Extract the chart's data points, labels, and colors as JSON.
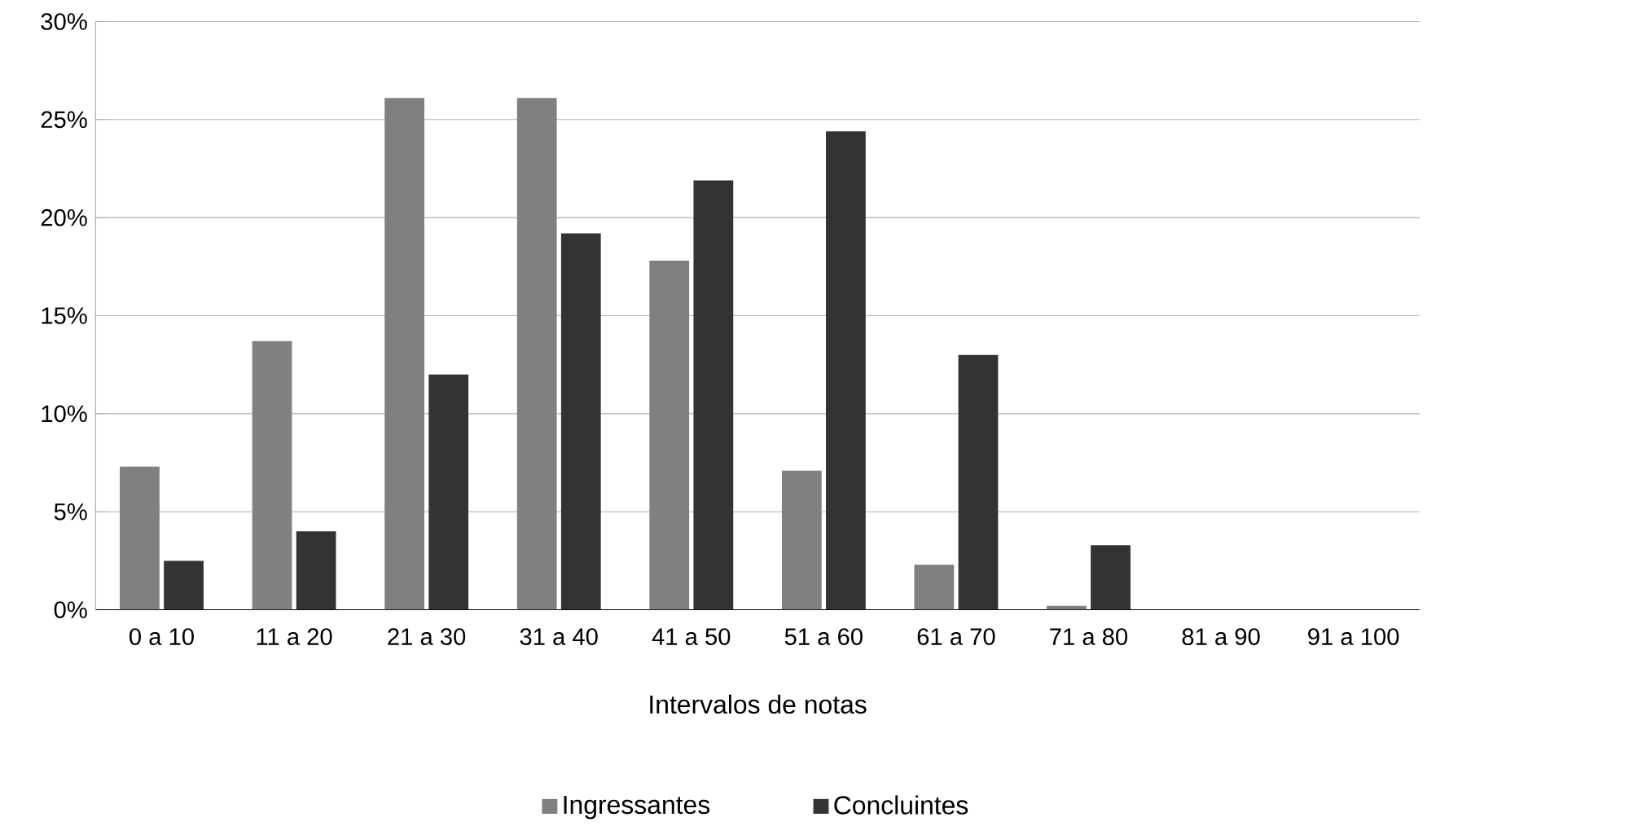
{
  "chart_data": {
    "type": "bar",
    "xlabel": "Intervalos de notas",
    "categories": [
      "0 a 10",
      "11 a 20",
      "21 a 30",
      "31 a 40",
      "41 a 50",
      "51 a 60",
      "61 a 70",
      "71 a 80",
      "81 a 90",
      "91 a 100"
    ],
    "series": [
      {
        "name": "Ingressantes",
        "color": "#808080",
        "values": [
          7.3,
          13.7,
          26.1,
          26.1,
          17.8,
          7.1,
          2.3,
          0.2,
          0,
          0
        ]
      },
      {
        "name": "Concluintes",
        "color": "#333333",
        "values": [
          2.5,
          4.0,
          12.0,
          19.2,
          21.9,
          24.4,
          13.0,
          3.3,
          0,
          0
        ]
      }
    ],
    "ylim": [
      0,
      30
    ],
    "yticks": [
      {
        "value": 0,
        "label": "0%"
      },
      {
        "value": 5,
        "label": "5%"
      },
      {
        "value": 10,
        "label": "10%"
      },
      {
        "value": 15,
        "label": "15%"
      },
      {
        "value": 20,
        "label": "20%"
      },
      {
        "value": 25,
        "label": "25%"
      },
      {
        "value": 30,
        "label": "30%"
      }
    ],
    "grid": "y",
    "legend": "bottom"
  }
}
